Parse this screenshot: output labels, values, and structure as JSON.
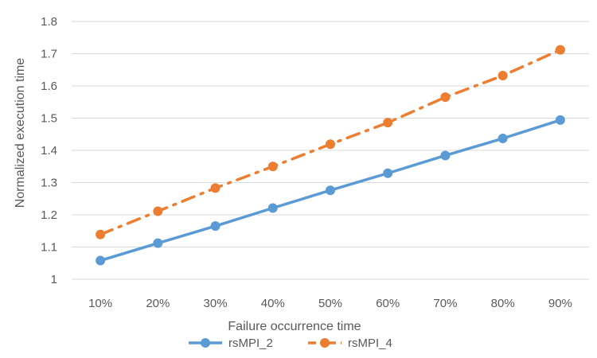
{
  "chart_data": {
    "type": "line",
    "title": "",
    "xlabel": "Failure occurrence time",
    "ylabel": "Normalized execution time",
    "categories": [
      "10%",
      "20%",
      "30%",
      "40%",
      "50%",
      "60%",
      "70%",
      "80%",
      "90%"
    ],
    "yticks": [
      "1",
      "1.1",
      "1.2",
      "1.3",
      "1.4",
      "1.5",
      "1.6",
      "1.7",
      "1.8"
    ],
    "ylim": [
      1,
      1.8
    ],
    "grid": true,
    "legend_position": "bottom",
    "series": [
      {
        "name": "rsMPI_2",
        "color": "#5b9bd5",
        "line_style": "solid",
        "values": [
          1.058,
          1.112,
          1.165,
          1.221,
          1.276,
          1.329,
          1.384,
          1.437,
          1.494
        ]
      },
      {
        "name": "rsMPI_4",
        "color": "#ed7d31",
        "line_style": "dash-dot",
        "values": [
          1.139,
          1.211,
          1.283,
          1.35,
          1.419,
          1.486,
          1.565,
          1.632,
          1.712
        ]
      }
    ]
  }
}
